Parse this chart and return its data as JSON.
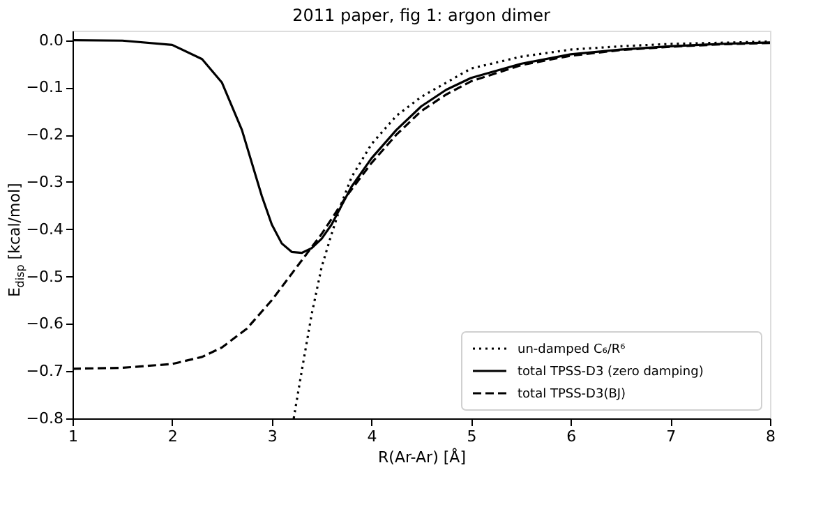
{
  "chart_data": {
    "type": "line",
    "title": "2011 paper, fig 1: argon dimer",
    "xlabel": "R(Ar-Ar) [Å]",
    "ylabel": "E$_{disp}$ [kcal/mol]",
    "xlim": [
      1,
      8
    ],
    "xticks": [
      1,
      2,
      3,
      4,
      5,
      6,
      7,
      8
    ],
    "ylim": [
      -0.8,
      0.02
    ],
    "yticks": [
      {
        "value": -0.8,
        "label": "−0.8"
      },
      {
        "value": -0.7,
        "label": "−0.7"
      },
      {
        "value": -0.6,
        "label": "−0.6"
      },
      {
        "value": -0.5,
        "label": "−0.5"
      },
      {
        "value": -0.4,
        "label": "−0.4"
      },
      {
        "value": -0.3,
        "label": "−0.3"
      },
      {
        "value": -0.2,
        "label": "−0.2"
      },
      {
        "value": -0.1,
        "label": "−0.1"
      },
      {
        "value": 0,
        "label": "0.0"
      }
    ],
    "grid": false,
    "legend": "bottom right",
    "marker": "none",
    "series": [
      {
        "name": "un-damped C₆/R⁶",
        "color": "#000000",
        "line_style": "dotted",
        "x": [
          3.22,
          3.3,
          3.4,
          3.5,
          3.6,
          3.7,
          3.8,
          4.0,
          4.25,
          4.5,
          5.0,
          5.5,
          6.0,
          6.5,
          7.0,
          8.0
        ],
        "values": [
          -0.8,
          -0.7,
          -0.58,
          -0.48,
          -0.41,
          -0.345,
          -0.29,
          -0.22,
          -0.16,
          -0.12,
          -0.06,
          -0.035,
          -0.02,
          -0.013,
          -0.008,
          -0.003
        ]
      },
      {
        "name": "total TPSS-D3 (zero damping)",
        "color": "#000000",
        "line_style": "solid",
        "x": [
          1,
          1.5,
          2,
          2.3,
          2.5,
          2.7,
          2.9,
          3.0,
          3.1,
          3.2,
          3.3,
          3.4,
          3.5,
          3.6,
          3.7,
          3.8,
          4.0,
          4.25,
          4.5,
          4.75,
          5.0,
          5.5,
          6.0,
          6.5,
          7.0,
          7.5,
          8.0
        ],
        "values": [
          0,
          -0.001,
          -0.01,
          -0.04,
          -0.09,
          -0.19,
          -0.33,
          -0.39,
          -0.43,
          -0.448,
          -0.45,
          -0.44,
          -0.42,
          -0.39,
          -0.35,
          -0.31,
          -0.25,
          -0.19,
          -0.14,
          -0.105,
          -0.08,
          -0.05,
          -0.03,
          -0.02,
          -0.013,
          -0.008,
          -0.005
        ]
      },
      {
        "name": "total TPSS-D3(BJ)",
        "color": "#000000",
        "line_style": "dashed",
        "x": [
          1,
          1.5,
          2,
          2.3,
          2.5,
          2.75,
          3.0,
          3.25,
          3.5,
          3.75,
          4.0,
          4.25,
          4.5,
          4.75,
          5.0,
          5.5,
          6.0,
          6.5,
          7.0,
          7.5,
          8.0
        ],
        "values": [
          -0.695,
          -0.693,
          -0.685,
          -0.67,
          -0.65,
          -0.61,
          -0.55,
          -0.48,
          -0.41,
          -0.33,
          -0.26,
          -0.2,
          -0.15,
          -0.115,
          -0.087,
          -0.053,
          -0.033,
          -0.021,
          -0.014,
          -0.009,
          -0.006
        ]
      }
    ]
  }
}
